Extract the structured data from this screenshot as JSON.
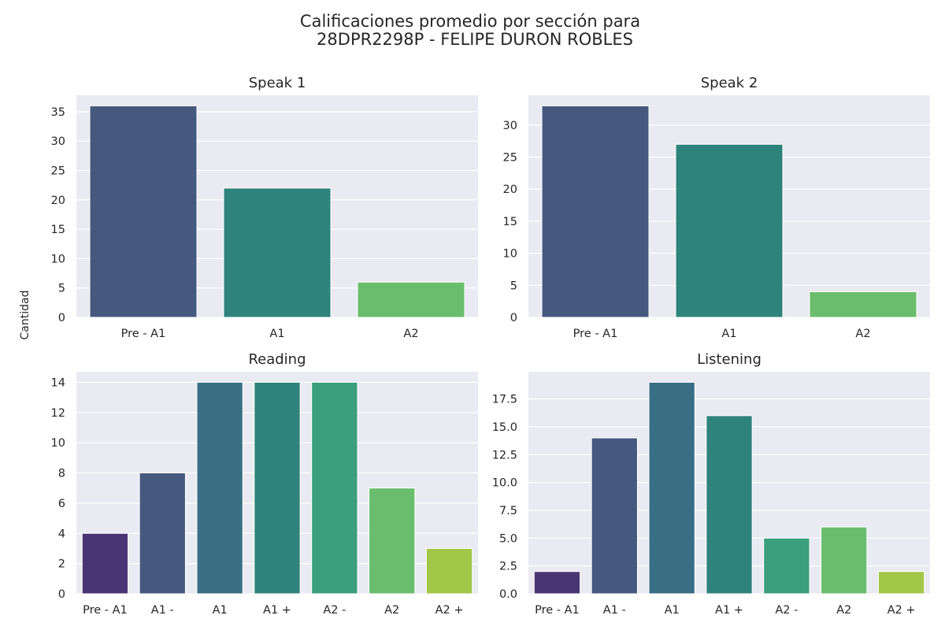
{
  "figure": {
    "title_line1": "Calificaciones promedio por sección para",
    "title_line2": "28DPR2298P - FELIPE DURON ROBLES",
    "ylabel": "Cantidad"
  },
  "chart_data": [
    {
      "type": "bar",
      "title": "Speak 1",
      "categories": [
        "Pre - A1",
        "A1",
        "A2"
      ],
      "values": [
        36,
        22,
        6
      ],
      "colors": [
        "#45587e",
        "#2e837b",
        "#6abd6c"
      ],
      "ylim": [
        0,
        37.8
      ],
      "yticks": [
        0,
        5,
        10,
        15,
        20,
        25,
        30,
        35
      ],
      "ytick_labels": [
        "0",
        "5",
        "10",
        "15",
        "20",
        "25",
        "30",
        "35"
      ],
      "grid": true
    },
    {
      "type": "bar",
      "title": "Speak 2",
      "categories": [
        "Pre - A1",
        "A1",
        "A2"
      ],
      "values": [
        33,
        27,
        4
      ],
      "colors": [
        "#45587e",
        "#2e837b",
        "#6abd6c"
      ],
      "ylim": [
        0,
        34.65
      ],
      "yticks": [
        0,
        5,
        10,
        15,
        20,
        25,
        30
      ],
      "ytick_labels": [
        "0",
        "5",
        "10",
        "15",
        "20",
        "25",
        "30"
      ],
      "grid": true
    },
    {
      "type": "bar",
      "title": "Reading",
      "categories": [
        "Pre - A1",
        "A1 -",
        "A1",
        "A1 +",
        "A2 -",
        "A2",
        "A2 +"
      ],
      "values": [
        4,
        8,
        14,
        14,
        14,
        7,
        3
      ],
      "colors": [
        "#4a3574",
        "#45587e",
        "#3a6e85",
        "#2e837b",
        "#3b9e7c",
        "#6abd6c",
        "#a1c648"
      ],
      "ylim": [
        0,
        14.7
      ],
      "yticks": [
        0,
        2,
        4,
        6,
        8,
        10,
        12,
        14
      ],
      "ytick_labels": [
        "0",
        "2",
        "4",
        "6",
        "8",
        "10",
        "12",
        "14"
      ],
      "grid": true
    },
    {
      "type": "bar",
      "title": "Listening",
      "categories": [
        "Pre - A1",
        "A1 -",
        "A1",
        "A1 +",
        "A2 -",
        "A2",
        "A2 +"
      ],
      "values": [
        2,
        14,
        19,
        16,
        5,
        6,
        2
      ],
      "colors": [
        "#4a3574",
        "#45587e",
        "#3a6e85",
        "#2e837b",
        "#3b9e7c",
        "#6abd6c",
        "#a1c648"
      ],
      "ylim": [
        0,
        19.95
      ],
      "yticks": [
        0,
        2.5,
        5,
        7.5,
        10,
        12.5,
        15,
        17.5
      ],
      "ytick_labels": [
        "0.0",
        "2.5",
        "5.0",
        "7.5",
        "10.0",
        "12.5",
        "15.0",
        "17.5"
      ],
      "grid": true
    }
  ]
}
